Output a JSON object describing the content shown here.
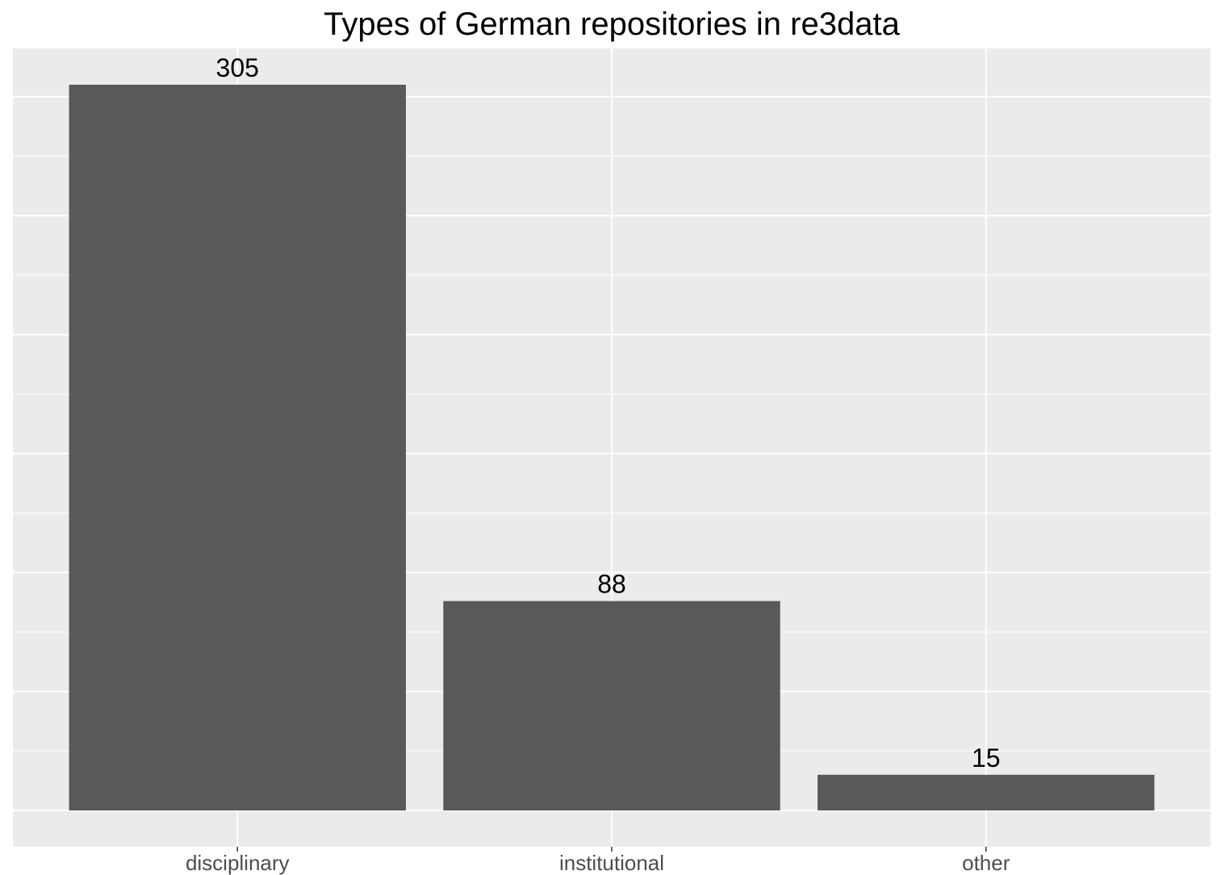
{
  "chart_data": {
    "type": "bar",
    "title": "Types of German repositories in re3data",
    "categories": [
      "disciplinary",
      "institutional",
      "other"
    ],
    "values": [
      305,
      88,
      15
    ],
    "data_labels": [
      "305",
      "88",
      "15"
    ],
    "xlabel": "",
    "ylabel": "",
    "ylim": [
      -15.25,
      320.25
    ],
    "y_gridlines": [
      0,
      50,
      100,
      150,
      200,
      250,
      300
    ],
    "y_tick_labels_visible": false,
    "grid": true,
    "legend": "none",
    "colors": {
      "panel_background": "#ebebeb",
      "grid_line": "#ffffff",
      "bar_fill": "#595959",
      "tick_text": "#4d4d4d",
      "tick_mark": "#333333"
    }
  }
}
